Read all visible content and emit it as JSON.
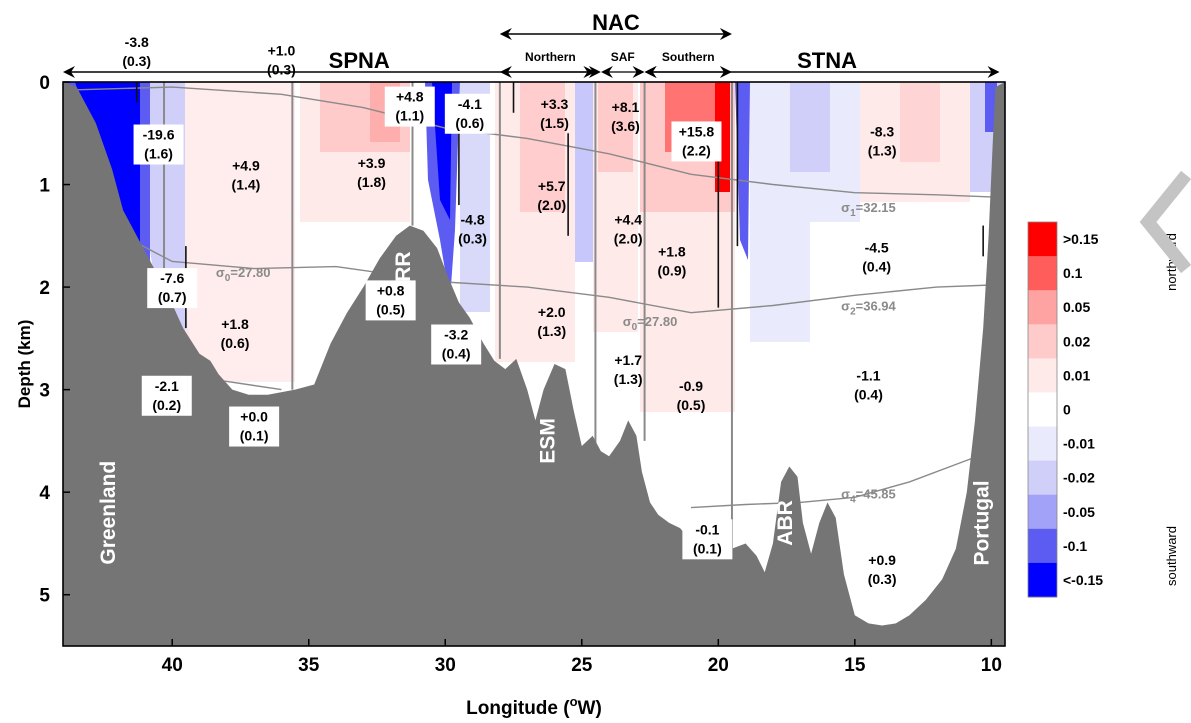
{
  "chart_data": {
    "type": "section",
    "xlabel": "Longitude (",
    "xlabel_unit": "W",
    "xlabel_sup": "o",
    "ylabel": "Depth (km)",
    "xlim": [
      44,
      9.5
    ],
    "ylim": [
      0,
      5.5
    ],
    "x_ticks": [
      "40",
      "35",
      "30",
      "25",
      "20",
      "15",
      "10"
    ],
    "x_tick_values": [
      40,
      35,
      30,
      25,
      20,
      15,
      10
    ],
    "y_ticks": [
      "0",
      "1",
      "2",
      "3",
      "4",
      "5"
    ],
    "y_tick_values": [
      0,
      1,
      2,
      3,
      4,
      5
    ],
    "regions": [
      {
        "name": "SPNA",
        "from": 44,
        "to": 24.5
      },
      {
        "name": "STNA",
        "from": 22.7,
        "to": 9.7
      },
      {
        "name": "NAC",
        "from": 28,
        "to": 19.5
      }
    ],
    "sub_regions": [
      {
        "name": "Northern",
        "from": 28,
        "to": 24.3
      },
      {
        "name": "SAF",
        "from": 24.3,
        "to": 22.7
      },
      {
        "name": "Southern",
        "from": 22.7,
        "to": 19.5
      }
    ],
    "topography_labels": [
      {
        "name": "Greenland",
        "lon": 42.3,
        "depth": 4.2
      },
      {
        "name": "RR",
        "lon": 31.5,
        "depth": 1.8
      },
      {
        "name": "ESM",
        "lon": 26.2,
        "depth": 3.5
      },
      {
        "name": "ABR",
        "lon": 17.5,
        "depth": 4.3
      },
      {
        "name": "Portugal",
        "lon": 10.3,
        "depth": 4.3
      }
    ],
    "isopycnals": [
      {
        "label": "σ1=32.15",
        "sym": "σ",
        "sub": "1",
        "val": "=32.15",
        "lon": 15.5,
        "depth": 1.27
      },
      {
        "label": "σ0=27.80",
        "sym": "σ",
        "sub": "0",
        "val": "=27.80",
        "lon": 38.4,
        "depth": 1.9
      },
      {
        "label": "σ0=27.80",
        "sym": "σ",
        "sub": "0",
        "val": "=27.80",
        "lon": 23.5,
        "depth": 2.38
      },
      {
        "label": "σ2=36.94",
        "sym": "σ",
        "sub": "2",
        "val": "=36.94",
        "lon": 15.5,
        "depth": 2.23
      },
      {
        "label": "σ4=45.85",
        "sym": "σ",
        "sub": "4",
        "val": "=45.85",
        "lon": 15.5,
        "depth": 4.06
      }
    ],
    "transport_annotations": [
      {
        "value": "-3.8",
        "error": "(0.3)",
        "lon": 41.3,
        "depth": -0.3,
        "boxed": false
      },
      {
        "value": "+1.0",
        "error": "(0.3)",
        "lon": 36.0,
        "depth": -0.22,
        "boxed": false
      },
      {
        "value": "-19.6",
        "error": "(1.6)",
        "lon": 40.5,
        "depth": 0.6,
        "boxed": true
      },
      {
        "value": "+4.9",
        "error": "(1.4)",
        "lon": 37.3,
        "depth": 0.9,
        "boxed": false
      },
      {
        "value": "+3.9",
        "error": "(1.8)",
        "lon": 32.7,
        "depth": 0.88,
        "boxed": false
      },
      {
        "value": "+4.8",
        "error": "(1.1)",
        "lon": 31.3,
        "depth": 0.23,
        "boxed": true
      },
      {
        "value": "-4.1",
        "error": "(0.6)",
        "lon": 29.1,
        "depth": 0.3,
        "boxed": true
      },
      {
        "value": "+3.3",
        "error": "(1.5)",
        "lon": 26.0,
        "depth": 0.3,
        "boxed": false
      },
      {
        "value": "+8.1",
        "error": "(3.6)",
        "lon": 23.4,
        "depth": 0.33,
        "boxed": false
      },
      {
        "value": "+15.8",
        "error": "(2.2)",
        "lon": 20.8,
        "depth": 0.57,
        "boxed": true
      },
      {
        "value": "-8.3",
        "error": "(1.3)",
        "lon": 14.0,
        "depth": 0.57,
        "boxed": false
      },
      {
        "value": "+5.7",
        "error": "(2.0)",
        "lon": 26.1,
        "depth": 1.1,
        "boxed": false
      },
      {
        "value": "-4.8",
        "error": "(0.3)",
        "lon": 29.0,
        "depth": 1.43,
        "boxed": false
      },
      {
        "value": "+4.4",
        "error": "(2.0)",
        "lon": 23.3,
        "depth": 1.43,
        "boxed": false
      },
      {
        "value": "+1.8",
        "error": "(0.9)",
        "lon": 21.7,
        "depth": 1.74,
        "boxed": false
      },
      {
        "value": "-4.5",
        "error": "(0.4)",
        "lon": 14.2,
        "depth": 1.7,
        "boxed": false
      },
      {
        "value": "-7.6",
        "error": "(0.7)",
        "lon": 40.0,
        "depth": 2.0,
        "boxed": true
      },
      {
        "value": "+0.8",
        "error": "(0.5)",
        "lon": 32.0,
        "depth": 2.12,
        "boxed": true
      },
      {
        "value": "+1.8",
        "error": "(0.6)",
        "lon": 37.7,
        "depth": 2.45,
        "boxed": false
      },
      {
        "value": "+2.0",
        "error": "(1.3)",
        "lon": 26.1,
        "depth": 2.33,
        "boxed": false
      },
      {
        "value": "-3.2",
        "error": "(0.4)",
        "lon": 29.6,
        "depth": 2.55,
        "boxed": true
      },
      {
        "value": "+1.7",
        "error": "(1.3)",
        "lon": 23.3,
        "depth": 2.8,
        "boxed": false
      },
      {
        "value": "-2.1",
        "error": "(0.2)",
        "lon": 40.2,
        "depth": 3.05,
        "boxed": true
      },
      {
        "value": "-0.9",
        "error": "(0.5)",
        "lon": 21.0,
        "depth": 3.05,
        "boxed": false
      },
      {
        "value": "-1.1",
        "error": "(0.4)",
        "lon": 14.5,
        "depth": 2.95,
        "boxed": false
      },
      {
        "value": "+0.0",
        "error": "(0.1)",
        "lon": 37.0,
        "depth": 3.35,
        "boxed": true
      },
      {
        "value": "-0.1",
        "error": "(0.1)",
        "lon": 20.4,
        "depth": 4.45,
        "boxed": true
      },
      {
        "value": "+0.9",
        "error": "(0.3)",
        "lon": 14.0,
        "depth": 4.75,
        "boxed": false
      }
    ],
    "colorbar": {
      "labels": [
        ">0.15",
        "0.1",
        "0.05",
        "0.02",
        "0.01",
        "0",
        "-0.01",
        "-0.02",
        "-0.05",
        "-0.1",
        "<-0.15"
      ],
      "colors": [
        "#ff0000",
        "#ff5c5c",
        "#ffa2a2",
        "#ffcaca",
        "#ffeaea",
        "#ffffff",
        "#eaeafd",
        "#cfcff9",
        "#a2a2f8",
        "#5c5cf2",
        "#0000ff"
      ],
      "top_label": "northward",
      "bottom_label": "southward"
    },
    "colors": {
      "topography": "#757575",
      "isopycnal": "#8a8a8a",
      "frame": "#000000"
    },
    "topography_profile": [
      [
        44.0,
        0.0
      ],
      [
        43.5,
        0.05
      ],
      [
        42.8,
        0.4
      ],
      [
        42.2,
        0.85
      ],
      [
        41.8,
        1.25
      ],
      [
        41.3,
        1.5
      ],
      [
        40.8,
        1.75
      ],
      [
        40.2,
        2.05
      ],
      [
        39.6,
        2.4
      ],
      [
        39.0,
        2.65
      ],
      [
        38.6,
        2.72
      ],
      [
        38.3,
        2.85
      ],
      [
        37.8,
        3.0
      ],
      [
        37.2,
        3.05
      ],
      [
        36.5,
        3.05
      ],
      [
        35.5,
        3.0
      ],
      [
        34.8,
        2.95
      ],
      [
        34.2,
        2.55
      ],
      [
        33.6,
        2.25
      ],
      [
        33.0,
        2.0
      ],
      [
        32.4,
        1.72
      ],
      [
        31.8,
        1.5
      ],
      [
        31.3,
        1.4
      ],
      [
        30.8,
        1.45
      ],
      [
        30.3,
        1.62
      ],
      [
        29.9,
        1.9
      ],
      [
        29.5,
        2.15
      ],
      [
        29.1,
        2.3
      ],
      [
        28.6,
        2.55
      ],
      [
        28.2,
        2.72
      ],
      [
        27.8,
        2.8
      ],
      [
        27.4,
        2.7
      ],
      [
        27.0,
        3.0
      ],
      [
        26.7,
        3.3
      ],
      [
        26.4,
        3.0
      ],
      [
        26.0,
        2.75
      ],
      [
        25.6,
        2.8
      ],
      [
        25.3,
        3.2
      ],
      [
        25.0,
        3.55
      ],
      [
        24.6,
        3.45
      ],
      [
        24.3,
        3.6
      ],
      [
        24.0,
        3.65
      ],
      [
        23.6,
        3.5
      ],
      [
        23.3,
        3.3
      ],
      [
        23.0,
        3.45
      ],
      [
        22.8,
        3.8
      ],
      [
        22.5,
        4.1
      ],
      [
        22.2,
        4.22
      ],
      [
        21.8,
        4.3
      ],
      [
        21.4,
        4.35
      ],
      [
        21.0,
        4.48
      ],
      [
        20.5,
        4.55
      ],
      [
        20.0,
        4.6
      ],
      [
        19.5,
        4.55
      ],
      [
        19.0,
        4.5
      ],
      [
        18.6,
        4.62
      ],
      [
        18.3,
        4.78
      ],
      [
        18.0,
        4.5
      ],
      [
        17.7,
        3.9
      ],
      [
        17.4,
        3.75
      ],
      [
        17.1,
        3.85
      ],
      [
        16.9,
        4.3
      ],
      [
        16.6,
        4.6
      ],
      [
        16.3,
        4.3
      ],
      [
        16.0,
        4.1
      ],
      [
        15.7,
        4.25
      ],
      [
        15.4,
        4.8
      ],
      [
        15.0,
        5.2
      ],
      [
        14.5,
        5.28
      ],
      [
        14.0,
        5.3
      ],
      [
        13.5,
        5.28
      ],
      [
        13.0,
        5.2
      ],
      [
        12.4,
        5.05
      ],
      [
        11.8,
        4.85
      ],
      [
        11.3,
        4.55
      ],
      [
        10.9,
        4.0
      ],
      [
        10.6,
        3.3
      ],
      [
        10.3,
        2.4
      ],
      [
        10.1,
        1.5
      ],
      [
        9.95,
        0.6
      ],
      [
        9.85,
        0.05
      ],
      [
        9.5,
        0.0
      ]
    ]
  }
}
